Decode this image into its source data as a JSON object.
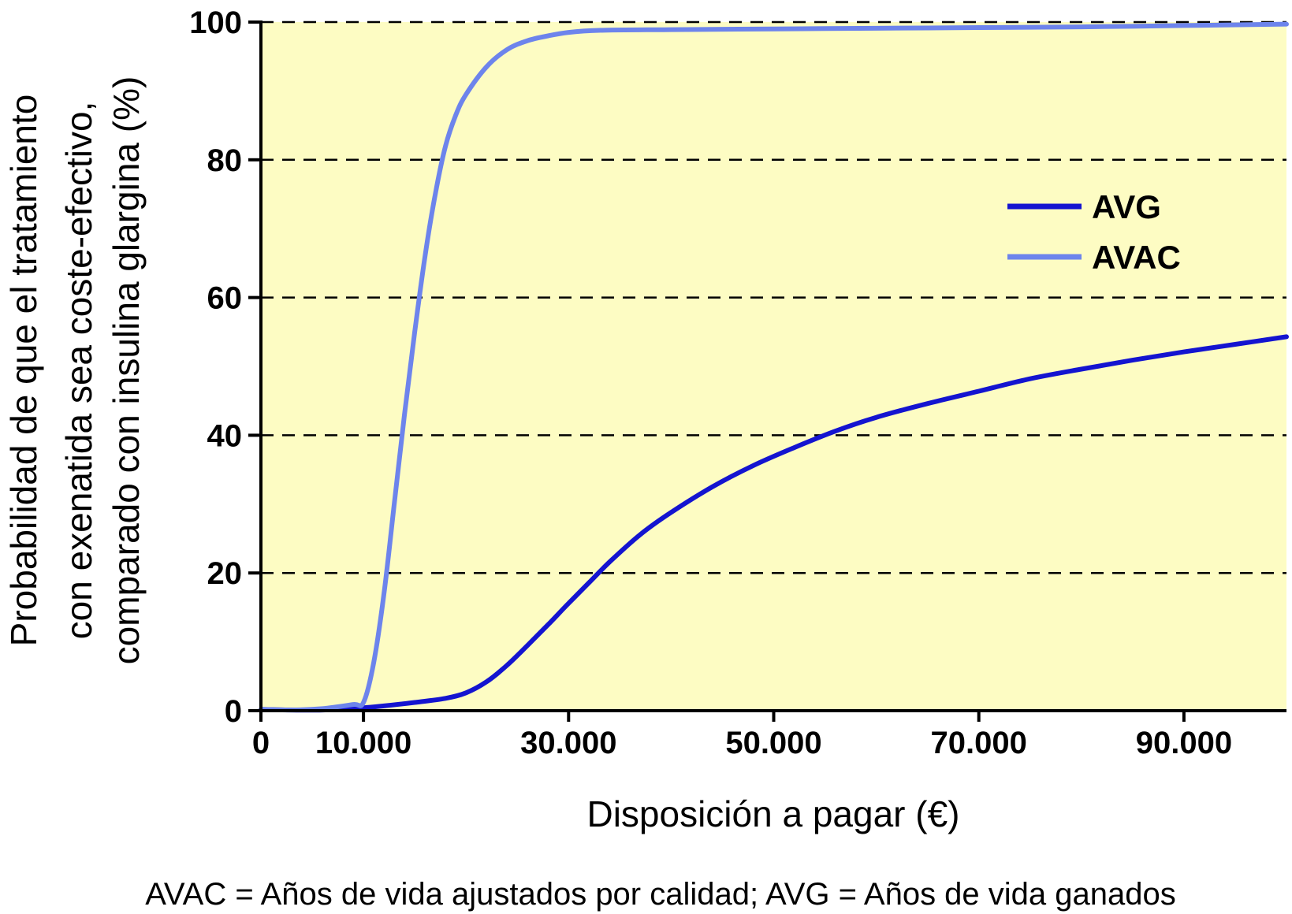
{
  "chart_data": {
    "type": "line",
    "xlabel": "Disposición a pagar (€)",
    "ylabel_lines": [
      "Probabilidad de que el tratamiento",
      "con exenatida sea coste-efectivo,",
      "comparado con insulina glargina (%)"
    ],
    "xlim": [
      0,
      100000
    ],
    "ylim": [
      0,
      100
    ],
    "x_ticks": [
      {
        "value": 0,
        "label": "0"
      },
      {
        "value": 10000,
        "label": "10.000"
      },
      {
        "value": 30000,
        "label": "30.000"
      },
      {
        "value": 50000,
        "label": "50.000"
      },
      {
        "value": 70000,
        "label": "70.000"
      },
      {
        "value": 90000,
        "label": "90.000"
      }
    ],
    "y_ticks": [
      {
        "value": 0,
        "label": "0"
      },
      {
        "value": 20,
        "label": "20"
      },
      {
        "value": 40,
        "label": "40"
      },
      {
        "value": 60,
        "label": "60"
      },
      {
        "value": 80,
        "label": "80"
      },
      {
        "value": 100,
        "label": "100"
      }
    ],
    "grid": "horizontal-dashed",
    "background_color": "#fdfcc3",
    "legend_position": "upper-right",
    "series": [
      {
        "name": "AVG",
        "color": "#1414d0",
        "points": [
          [
            0,
            0.2
          ],
          [
            3000,
            0.1
          ],
          [
            6000,
            0.1
          ],
          [
            9000,
            0.3
          ],
          [
            12000,
            0.7
          ],
          [
            15000,
            1.2
          ],
          [
            18000,
            1.8
          ],
          [
            20000,
            2.6
          ],
          [
            22000,
            4.2
          ],
          [
            24000,
            6.6
          ],
          [
            26000,
            9.5
          ],
          [
            28000,
            12.5
          ],
          [
            30000,
            15.6
          ],
          [
            32000,
            18.6
          ],
          [
            34000,
            21.6
          ],
          [
            37000,
            25.6
          ],
          [
            40000,
            28.8
          ],
          [
            44000,
            32.5
          ],
          [
            48000,
            35.6
          ],
          [
            52000,
            38.2
          ],
          [
            56000,
            40.6
          ],
          [
            60000,
            42.6
          ],
          [
            65000,
            44.6
          ],
          [
            70000,
            46.4
          ],
          [
            75000,
            48.2
          ],
          [
            80000,
            49.6
          ],
          [
            85000,
            50.9
          ],
          [
            90000,
            52.1
          ],
          [
            95000,
            53.2
          ],
          [
            100000,
            54.3
          ]
        ]
      },
      {
        "name": "AVAC",
        "color": "#6d84ec",
        "points": [
          [
            0,
            0.2
          ],
          [
            3000,
            0.1
          ],
          [
            6000,
            0.3
          ],
          [
            9000,
            0.9
          ],
          [
            10000,
            1.2
          ],
          [
            11000,
            7
          ],
          [
            12000,
            17
          ],
          [
            13000,
            30
          ],
          [
            14000,
            43
          ],
          [
            15000,
            55
          ],
          [
            16000,
            66
          ],
          [
            17000,
            75
          ],
          [
            18000,
            82
          ],
          [
            19000,
            86.5
          ],
          [
            20000,
            89.5
          ],
          [
            22000,
            93.5
          ],
          [
            24000,
            96
          ],
          [
            26000,
            97.3
          ],
          [
            28000,
            98
          ],
          [
            30000,
            98.5
          ],
          [
            33000,
            98.8
          ],
          [
            40000,
            98.9
          ],
          [
            50000,
            99
          ],
          [
            60000,
            99.1
          ],
          [
            70000,
            99.2
          ],
          [
            80000,
            99.3
          ],
          [
            90000,
            99.5
          ],
          [
            100000,
            99.7
          ]
        ]
      }
    ],
    "footnote": "AVAC = Años de vida ajustados por calidad; AVG = Años de vida ganados"
  }
}
